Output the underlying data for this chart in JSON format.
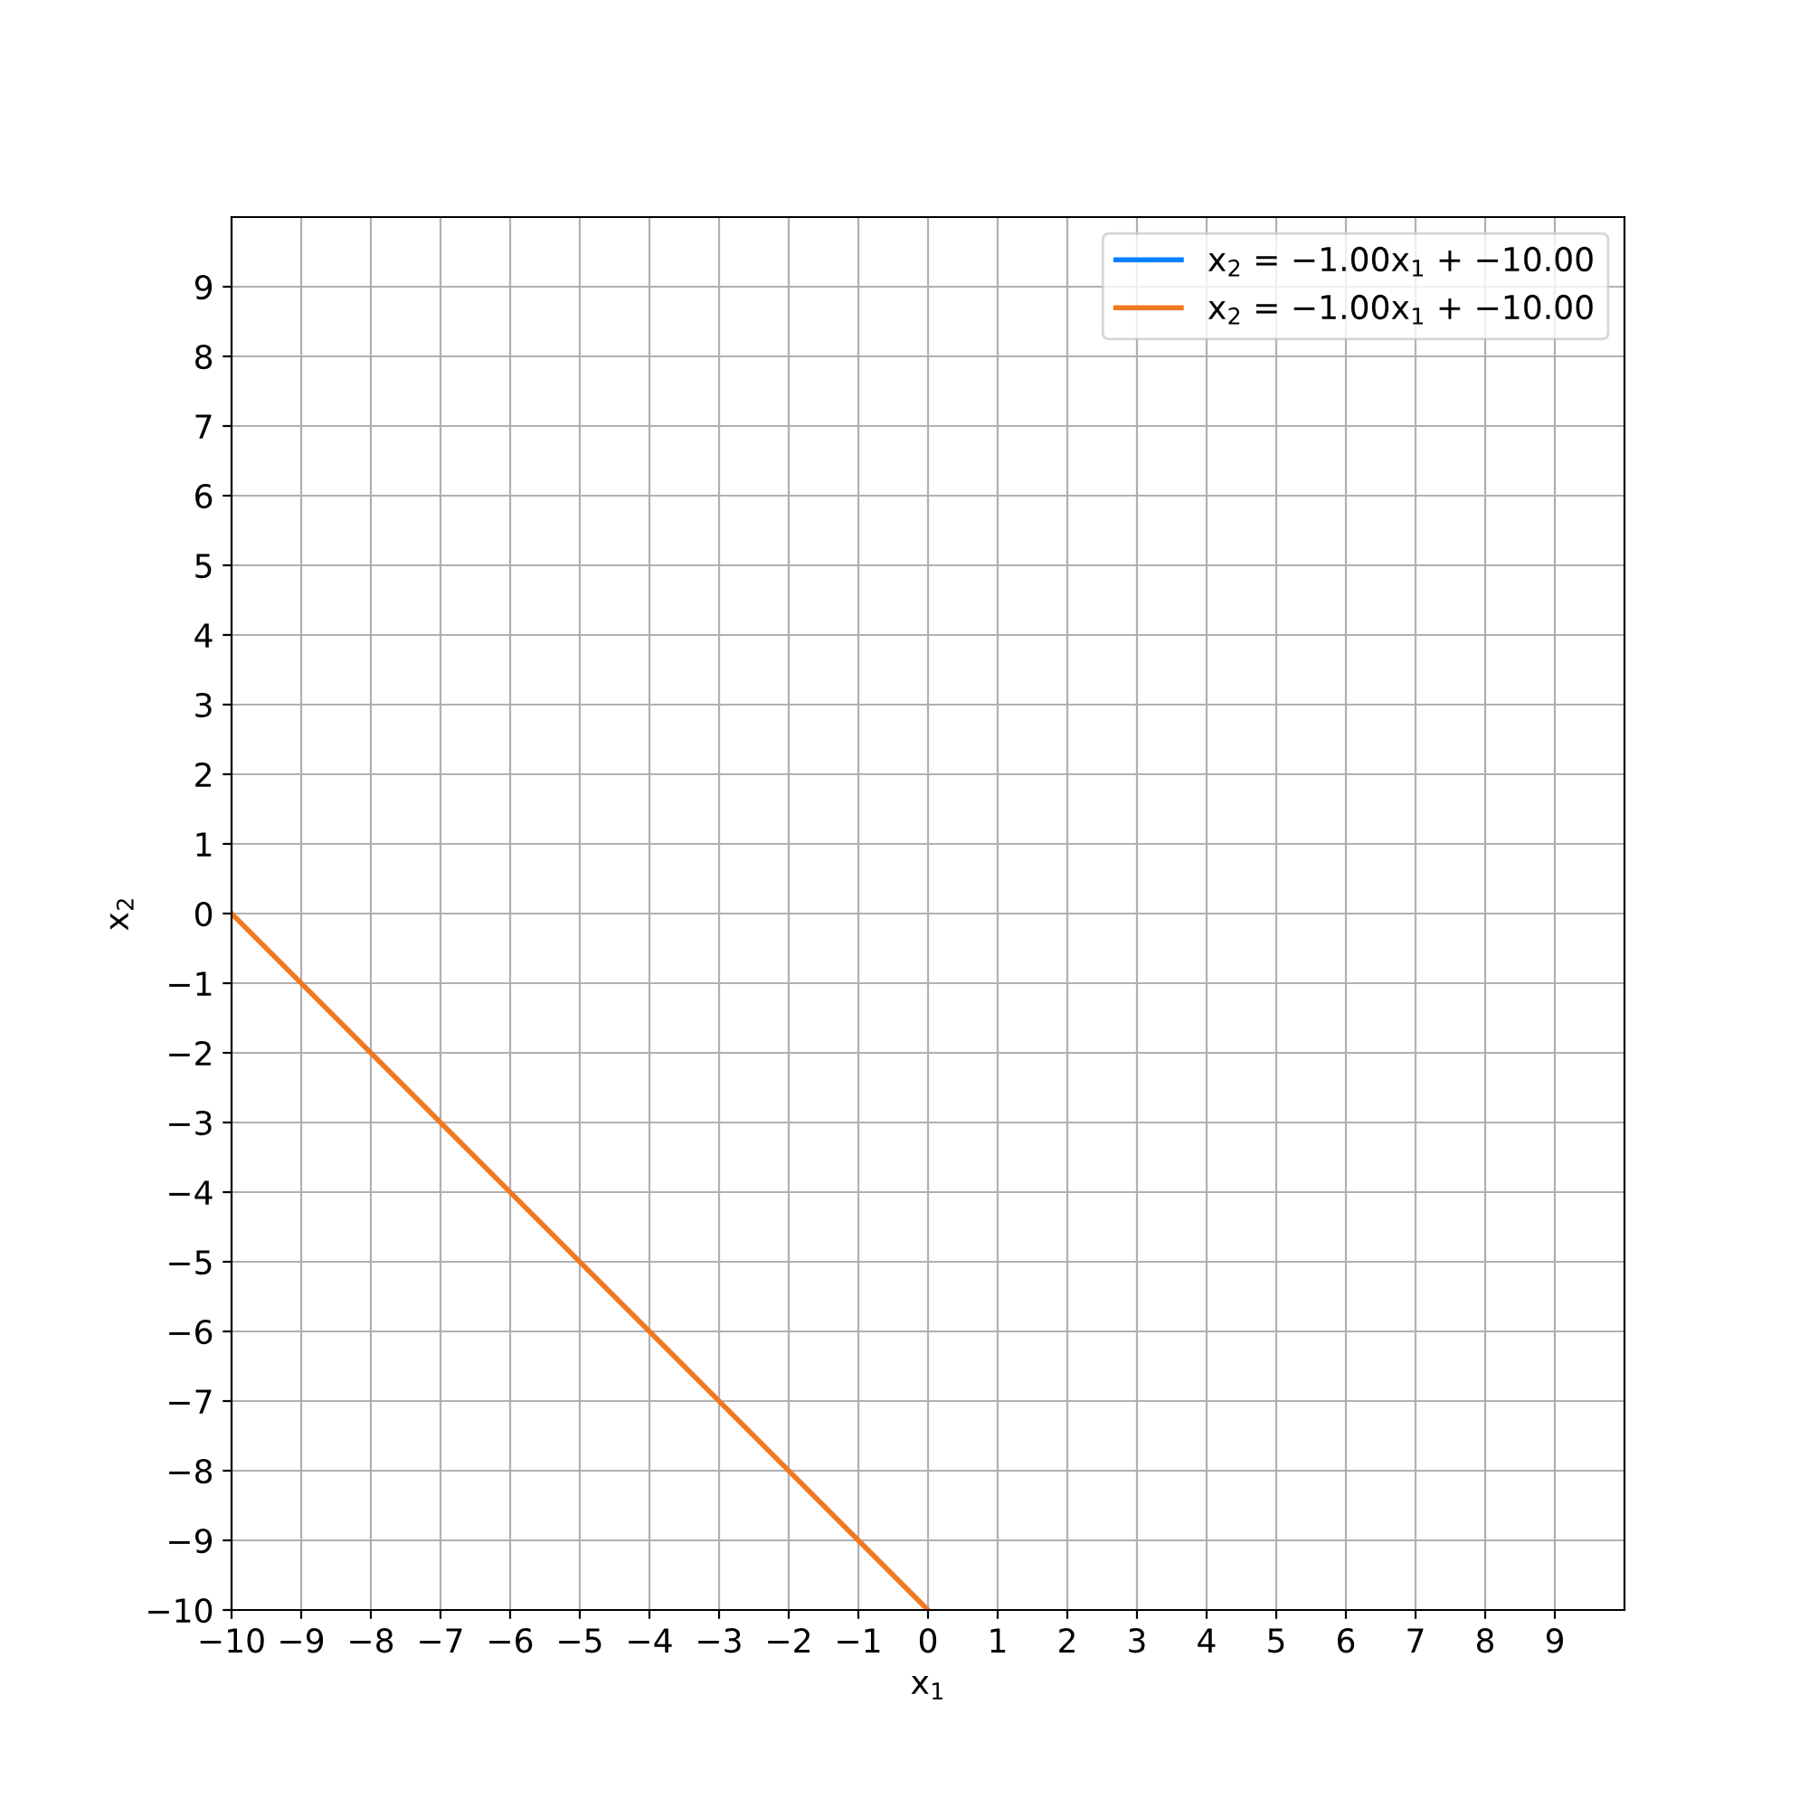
{
  "chart_data": {
    "type": "line",
    "xlabel": "x$_{1}$",
    "ylabel": "x$_{2}$",
    "x": [
      -10,
      0
    ],
    "series": [
      {
        "name": "x$_{2}$ = −1.00x$_{1}$ + −10.00",
        "color": "#0080ff",
        "values": [
          null,
          null
        ]
      },
      {
        "name": "x$_{2}$ = −1.00x$_{1}$ + −10.00",
        "color": "#f07820",
        "values": [
          0,
          -10
        ]
      }
    ],
    "xlim": [
      -10,
      10
    ],
    "ylim": [
      -10,
      10
    ],
    "xticks": [
      -10,
      -9,
      -8,
      -7,
      -6,
      -5,
      -4,
      -3,
      -2,
      -1,
      0,
      1,
      2,
      3,
      4,
      5,
      6,
      7,
      8,
      9
    ],
    "yticks": [
      -10,
      -9,
      -8,
      -7,
      -6,
      -5,
      -4,
      -3,
      -2,
      -1,
      0,
      1,
      2,
      3,
      4,
      5,
      6,
      7,
      8,
      9
    ],
    "grid": true,
    "legend": "top right",
    "line_style": "solid",
    "marker": "none"
  }
}
